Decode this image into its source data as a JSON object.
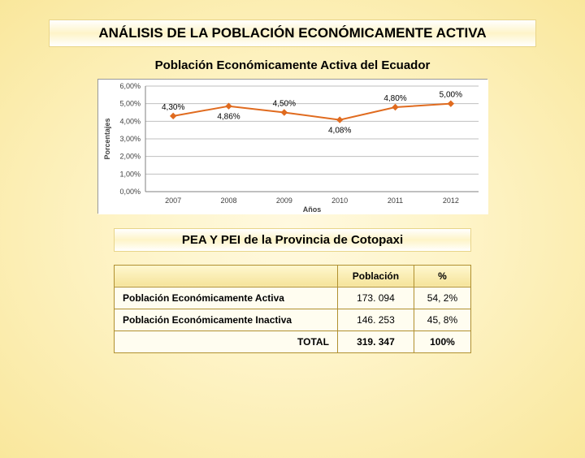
{
  "main_title": "ANÁLISIS DE LA POBLACIÓN ECONÓMICAMENTE ACTIVA",
  "chart": {
    "type": "line",
    "title": "Población Económicamente Activa del Ecuador",
    "x_label": "Años",
    "y_label": "Porcentajes",
    "categories": [
      "2007",
      "2008",
      "2009",
      "2010",
      "2011",
      "2012"
    ],
    "values": [
      4.3,
      4.86,
      4.5,
      4.08,
      4.8,
      5.0
    ],
    "value_labels": [
      "4,30%",
      "4,86%",
      "4,50%",
      "4,08%",
      "4,80%",
      "5,00%"
    ],
    "ylim": [
      0,
      6
    ],
    "ytick_step": 1,
    "ytick_labels": [
      "0,00%",
      "1,00%",
      "2,00%",
      "3,00%",
      "4,00%",
      "5,00%",
      "6,00%"
    ],
    "line_color": "#e06b1f",
    "marker_color": "#e06b1f",
    "marker_shape": "diamond",
    "marker_size": 7,
    "line_width": 2,
    "background_color": "#ffffff",
    "grid_color": "#bfbfbf",
    "axis_font_size": 9,
    "axis_font_color": "#404040",
    "label_font_size": 9,
    "label_font_color": "#404040",
    "data_label_font_size": 10,
    "data_label_color": "#000000"
  },
  "sub_title": "PEA Y PEI de la Provincia de Cotopaxi",
  "table": {
    "columns": [
      "",
      "Población",
      "%"
    ],
    "rows": [
      {
        "label": "Población Económicamente Activa",
        "pop": "173. 094",
        "pct": "54, 2%"
      },
      {
        "label": "Población Económicamente Inactiva",
        "pop": "146. 253",
        "pct": "45, 8%"
      },
      {
        "label": "TOTAL",
        "pop": "319. 347",
        "pct": "100%"
      }
    ],
    "header_bg": "#f5e39a",
    "border_color": "#b09030"
  }
}
